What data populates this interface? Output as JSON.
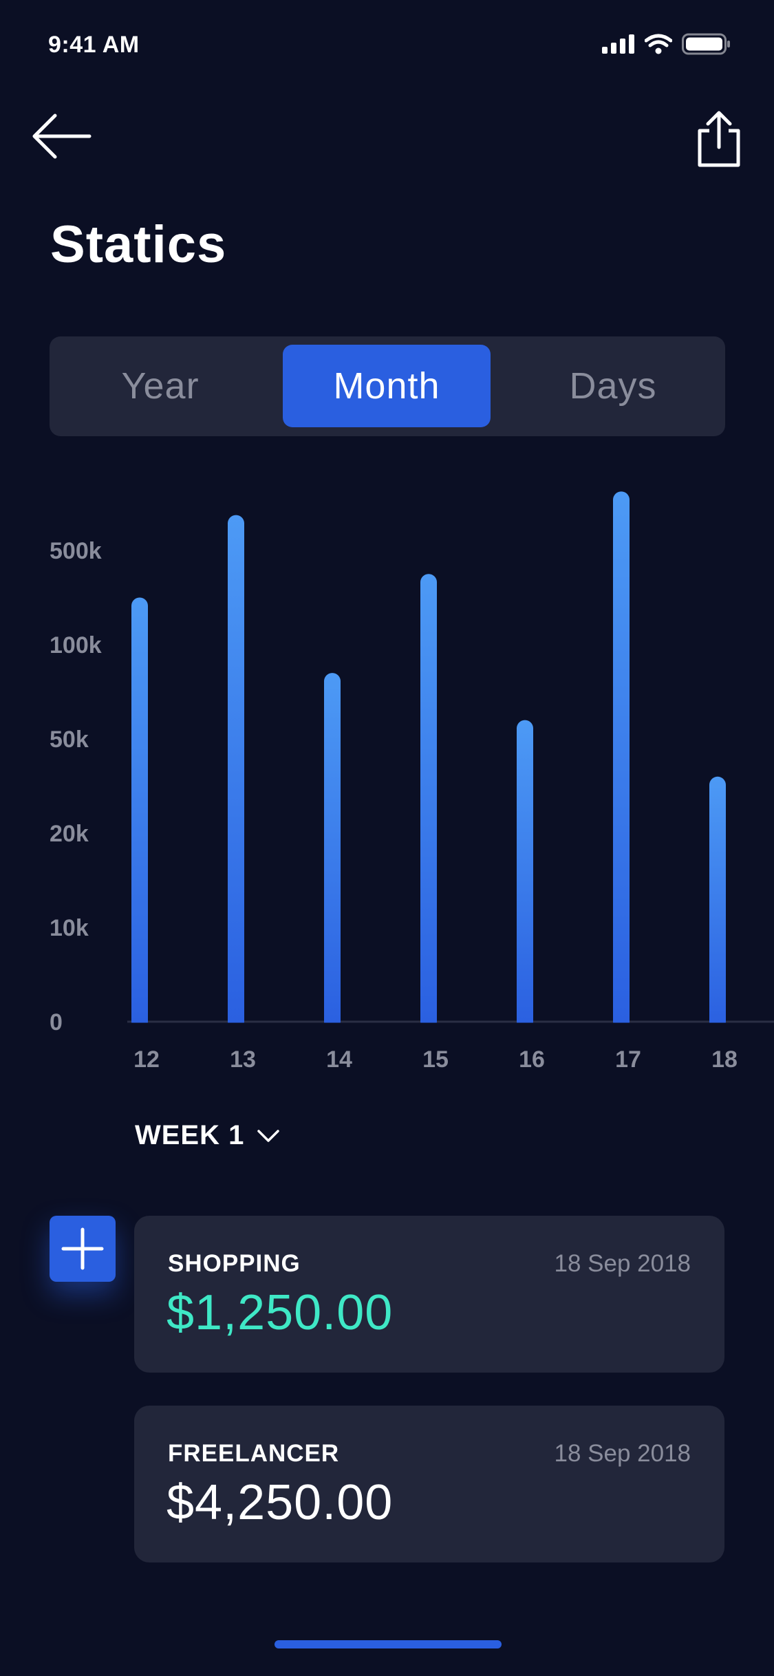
{
  "status_bar": {
    "time": "9:41 AM",
    "icons": [
      "signal-icon",
      "wifi-icon",
      "battery-icon"
    ]
  },
  "header": {
    "back_icon": "arrow-left-icon",
    "share_icon": "share-icon",
    "title": "Statics"
  },
  "tabs": [
    {
      "label": "Year",
      "active": false
    },
    {
      "label": "Month",
      "active": true
    },
    {
      "label": "Days",
      "active": false
    }
  ],
  "chart_data": {
    "type": "bar",
    "title": "",
    "xlabel": "",
    "ylabel": "",
    "categories": [
      "12",
      "13",
      "14",
      "15",
      "16",
      "17",
      "18"
    ],
    "y_tick_labels": [
      "0",
      "10k",
      "20k",
      "50k",
      "100k",
      "500k"
    ],
    "y_ticks": [
      0,
      10000,
      20000,
      50000,
      100000,
      500000
    ],
    "values": [
      300000,
      650000,
      85000,
      400000,
      60000,
      750000,
      38000
    ],
    "grid": false,
    "colors": {
      "bar_top": "#4d9af5",
      "bar_bottom": "#2a5fe0"
    }
  },
  "week_selector": {
    "label": "WEEK 1",
    "icon": "chevron-down-icon"
  },
  "add_button": {
    "icon": "plus-icon"
  },
  "transactions": [
    {
      "category": "SHOPPING",
      "date": "18 Sep 2018",
      "amount": "$1,250.00",
      "amount_color": "#3fe8c6"
    },
    {
      "category": "FREELANCER",
      "date": "18 Sep 2018",
      "amount": "$4,250.00",
      "amount_color": "#ffffff"
    }
  ],
  "colors": {
    "background": "#0b0f24",
    "card": "#22263a",
    "accent": "#2a5fe0",
    "muted_text": "#8a8d9c",
    "positive": "#3fe8c6"
  }
}
